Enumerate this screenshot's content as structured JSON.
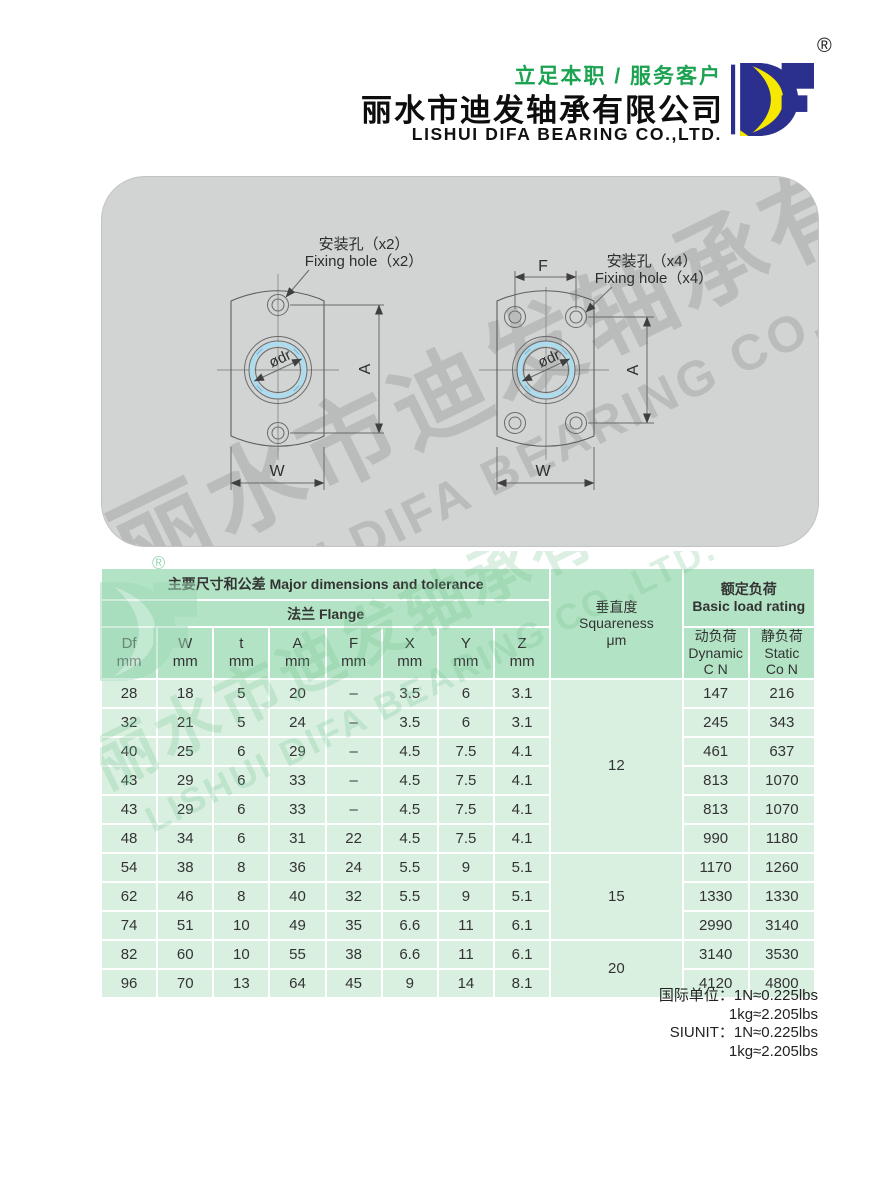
{
  "header": {
    "slogan": "立足本职 / 服务客户",
    "company_cn": "丽水市迪发轴承有限公司",
    "company_en": "LISHUI DIFA BEARING CO.,LTD.",
    "registered": "®",
    "brand_green": "#1ba352",
    "logo_colors": {
      "blue": "#2b2f8d",
      "yellow": "#f6e800"
    }
  },
  "watermark": {
    "line1": "丽水市迪发轴承有限公司",
    "line2": "LISHUI DIFA BEARING CO.,LTD.",
    "registered": "®"
  },
  "diagrams": {
    "left": {
      "label_cn": "安装孔（x2）",
      "label_en": "Fixing hole（x2）",
      "bore": "ødr",
      "dim_a": "A",
      "dim_w": "W"
    },
    "right": {
      "label_cn": "安装孔（x4）",
      "label_en": "Fixing hole（x4）",
      "bore": "ødr",
      "dim_f": "F",
      "dim_a": "A",
      "dim_w": "W"
    }
  },
  "table": {
    "group_dims": "主要尺寸和公差 Major dimensions and tolerance",
    "group_flange": "法兰 Flange",
    "squareness_header": "垂直度\nSquareness\nμm",
    "load_header": "额定负荷\nBasic load rating",
    "dynamic_header": "动负荷\nDynamic\nC N",
    "static_header": "静负荷\nStatic\nCo N",
    "columns": [
      "Df\nmm",
      "W\nmm",
      "t\nmm",
      "A\nmm",
      "F\nmm",
      "X\nmm",
      "Y\nmm",
      "Z\nmm"
    ],
    "rows": [
      {
        "dims": [
          "28",
          "18",
          "5",
          "20",
          "–",
          "3.5",
          "6",
          "3.1"
        ],
        "dynamic": "147",
        "static": "216"
      },
      {
        "dims": [
          "32",
          "21",
          "5",
          "24",
          "–",
          "3.5",
          "6",
          "3.1"
        ],
        "dynamic": "245",
        "static": "343"
      },
      {
        "dims": [
          "40",
          "25",
          "6",
          "29",
          "–",
          "4.5",
          "7.5",
          "4.1"
        ],
        "dynamic": "461",
        "static": "637"
      },
      {
        "dims": [
          "43",
          "29",
          "6",
          "33",
          "–",
          "4.5",
          "7.5",
          "4.1"
        ],
        "dynamic": "813",
        "static": "1070"
      },
      {
        "dims": [
          "43",
          "29",
          "6",
          "33",
          "–",
          "4.5",
          "7.5",
          "4.1"
        ],
        "dynamic": "813",
        "static": "1070"
      },
      {
        "dims": [
          "48",
          "34",
          "6",
          "31",
          "22",
          "4.5",
          "7.5",
          "4.1"
        ],
        "dynamic": "990",
        "static": "1180"
      },
      {
        "dims": [
          "54",
          "38",
          "8",
          "36",
          "24",
          "5.5",
          "9",
          "5.1"
        ],
        "dynamic": "1170",
        "static": "1260"
      },
      {
        "dims": [
          "62",
          "46",
          "8",
          "40",
          "32",
          "5.5",
          "9",
          "5.1"
        ],
        "dynamic": "1330",
        "static": "1330"
      },
      {
        "dims": [
          "74",
          "51",
          "10",
          "49",
          "35",
          "6.6",
          "11",
          "6.1"
        ],
        "dynamic": "2990",
        "static": "3140"
      },
      {
        "dims": [
          "82",
          "60",
          "10",
          "55",
          "38",
          "6.6",
          "11",
          "6.1"
        ],
        "dynamic": "3140",
        "static": "3530"
      },
      {
        "dims": [
          "96",
          "70",
          "13",
          "64",
          "45",
          "9",
          "14",
          "8.1"
        ],
        "dynamic": "4120",
        "static": "4800"
      }
    ],
    "squareness_groups": [
      {
        "value": "12",
        "span": 6
      },
      {
        "value": "15",
        "span": 3
      },
      {
        "value": "20",
        "span": 2
      }
    ],
    "colors": {
      "header_bg": "#b3e3c5",
      "body_bg": "#d9f0e1"
    }
  },
  "footer": {
    "lines": [
      "国际单位：1N≈0.225lbs",
      "1kg≈2.205lbs",
      "SIUNIT：1N≈0.225lbs",
      "1kg≈2.205lbs"
    ]
  }
}
